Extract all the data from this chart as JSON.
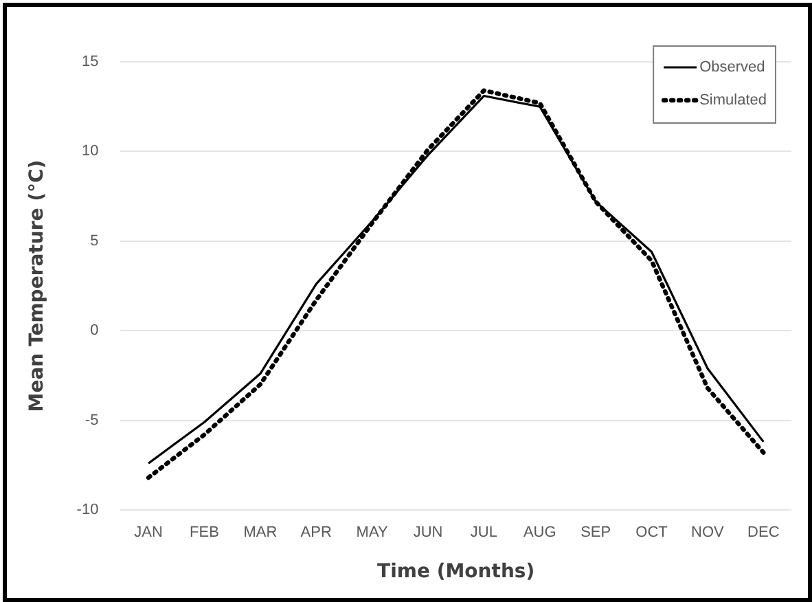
{
  "chart_data": {
    "type": "line",
    "xlabel": "Time (Months)",
    "ylabel": "Mean Temperature (°C)",
    "categories": [
      "JAN",
      "FEB",
      "MAR",
      "APR",
      "MAY",
      "JUN",
      "JUL",
      "AUG",
      "SEP",
      "OCT",
      "NOV",
      "DEC"
    ],
    "series": [
      {
        "name": "Observed",
        "color": "#000000",
        "line_style": "solid",
        "values": [
          -7.4,
          -5.1,
          -2.4,
          2.6,
          6.1,
          9.8,
          13.1,
          12.5,
          7.2,
          4.4,
          -2.1,
          -6.2
        ]
      },
      {
        "name": "Simulated",
        "color": "#000000",
        "line_style": "dotted",
        "values": [
          -8.2,
          -5.8,
          -3.0,
          1.7,
          6.0,
          10.1,
          13.4,
          12.7,
          7.2,
          3.9,
          -3.2,
          -6.8
        ]
      }
    ],
    "ylim": [
      -10,
      15
    ],
    "yticks": [
      -10,
      -5,
      0,
      5,
      10,
      15
    ],
    "grid": "y",
    "legend": "top right",
    "marker": "none"
  }
}
